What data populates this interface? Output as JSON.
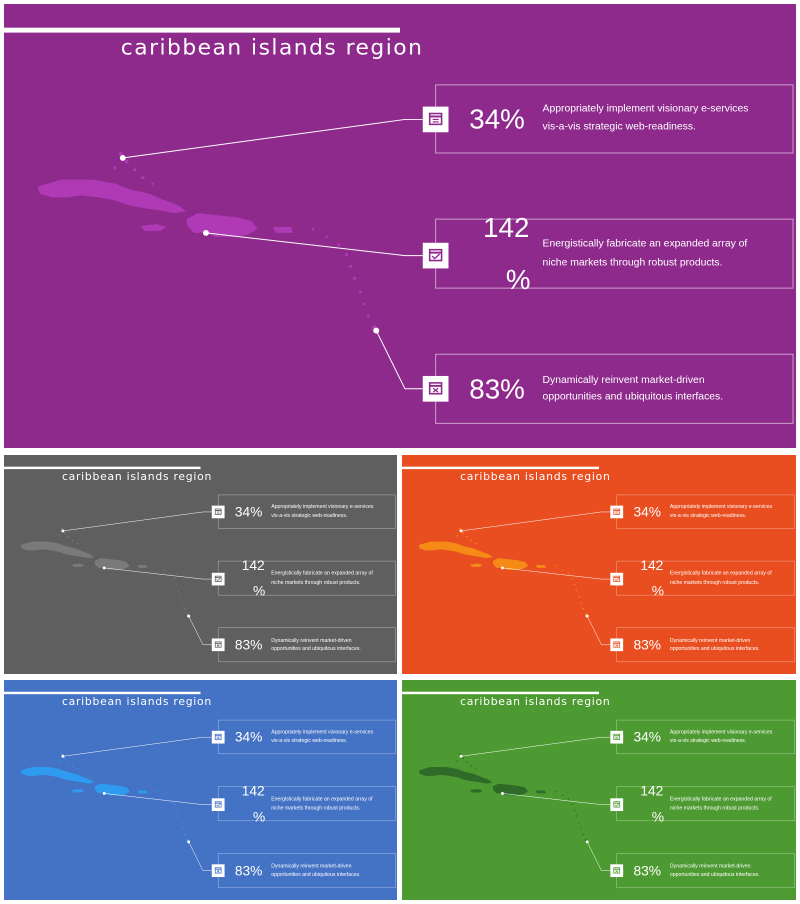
{
  "title": "caribbean islands region",
  "items": [
    {
      "percent": "34%",
      "percent_line1": "34%",
      "percent_line2": "",
      "desc_line1": "Appropriately implement visionary e-services",
      "desc_line2": "vis-a-vis strategic web-readiness.",
      "icon": "calendar-icon"
    },
    {
      "percent": "142%",
      "percent_line1": "142",
      "percent_line2": "%",
      "desc_line1": "Energistically fabricate an expanded array of",
      "desc_line2": "niche markets through robust products.",
      "icon": "calendar-check-icon"
    },
    {
      "percent": "83%",
      "percent_line1": "83%",
      "percent_line2": "",
      "desc_line1": "Dynamically reinvent market-driven",
      "desc_line2": "opportunities and ubiquitous interfaces.",
      "icon": "calendar-x-icon"
    }
  ],
  "variants": [
    {
      "theme": "purple",
      "background": "#8E2A8C",
      "map_color": "#B03AB6"
    },
    {
      "theme": "gray",
      "background": "#5F5F5F",
      "map_color": "#7A7A7A"
    },
    {
      "theme": "orange",
      "background": "#E94E20",
      "map_color": "#F58A16"
    },
    {
      "theme": "blue",
      "background": "#4472C4",
      "map_color": "#2E9BF0"
    },
    {
      "theme": "green",
      "background": "#4E9A32",
      "map_color": "#2F6A28"
    }
  ]
}
